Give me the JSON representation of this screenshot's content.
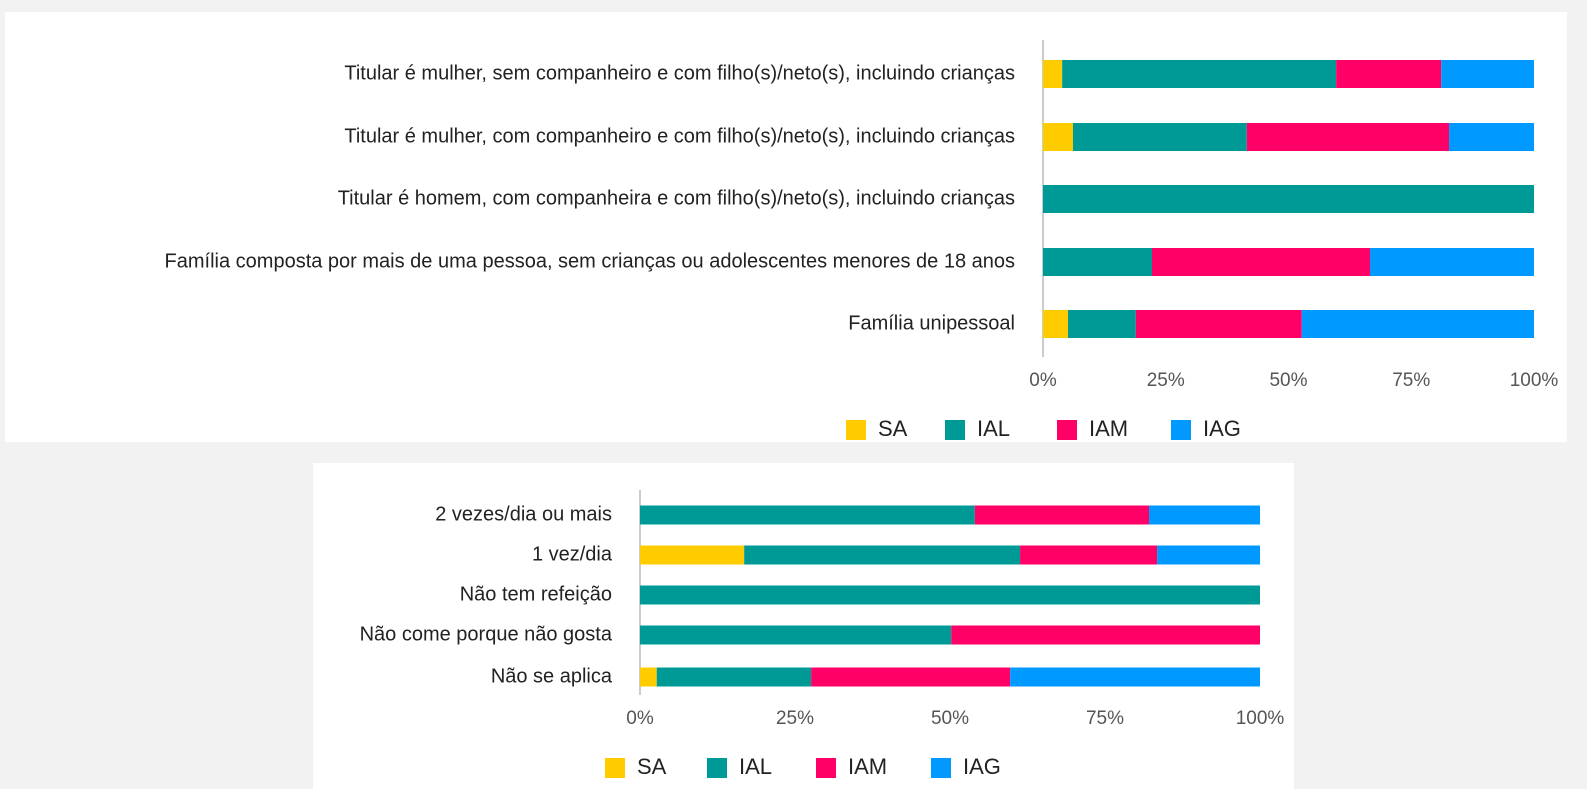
{
  "chart_data": [
    {
      "type": "bar",
      "orientation": "horizontal",
      "stacked": true,
      "legend": "bottom",
      "categories": [
        "Titular é mulher, sem companheiro e com filho(s)/neto(s), incluindo crianças",
        "Titular é mulher, com companheiro e com filho(s)/neto(s), incluindo crianças",
        "Titular é homem, com companheira e com filho(s)/neto(s), incluindo crianças",
        "Família composta por mais de uma pessoa, sem crianças ou adolescentes menores de 18 anos",
        "Família unipessoal"
      ],
      "series": [
        {
          "name": "SA",
          "color": "#ffcc00",
          "values": [
            3.9,
            6.1,
            0,
            0,
            5.1
          ]
        },
        {
          "name": "IAL",
          "color": "#009a96",
          "values": [
            55.8,
            35.4,
            100,
            22.2,
            13.8
          ]
        },
        {
          "name": "IAM",
          "color": "#ff0066",
          "values": [
            21.4,
            41.2,
            0,
            44.4,
            33.8
          ]
        },
        {
          "name": "IAG",
          "color": "#0099ff",
          "values": [
            18.9,
            17.3,
            0,
            33.4,
            47.3
          ]
        }
      ],
      "xlim": [
        0,
        100
      ],
      "xticks": [
        {
          "value": 0,
          "label": "0%"
        },
        {
          "value": 25,
          "label": "25%"
        },
        {
          "value": 50,
          "label": "50%"
        },
        {
          "value": 75,
          "label": "75%"
        },
        {
          "value": 100,
          "label": "100%"
        }
      ]
    },
    {
      "type": "bar",
      "orientation": "horizontal",
      "stacked": true,
      "legend": "bottom",
      "categories": [
        "2 vezes/dia ou mais",
        "1 vez/dia",
        "Não tem refeição",
        "Não come porque não gosta",
        "Não se aplica"
      ],
      "series": [
        {
          "name": "SA",
          "color": "#ffcc00",
          "values": [
            0,
            16.8,
            0,
            0,
            2.7
          ]
        },
        {
          "name": "IAL",
          "color": "#009a96",
          "values": [
            54.0,
            44.5,
            100,
            50.2,
            24.9
          ]
        },
        {
          "name": "IAM",
          "color": "#ff0066",
          "values": [
            28.1,
            22.1,
            0,
            49.8,
            32.1
          ]
        },
        {
          "name": "IAG",
          "color": "#0099ff",
          "values": [
            17.9,
            16.6,
            0,
            0,
            40.3
          ]
        }
      ],
      "xlim": [
        0,
        100
      ],
      "xticks": [
        {
          "value": 0,
          "label": "0%"
        },
        {
          "value": 25,
          "label": "25%"
        },
        {
          "value": 50,
          "label": "50%"
        },
        {
          "value": 75,
          "label": "75%"
        },
        {
          "value": 100,
          "label": "100%"
        }
      ]
    }
  ]
}
